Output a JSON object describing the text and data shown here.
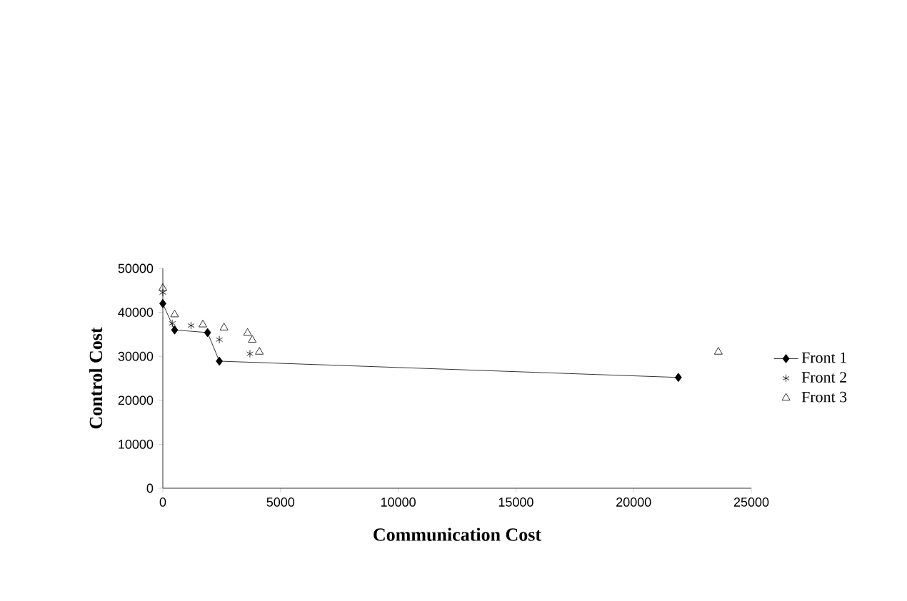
{
  "chart_data": {
    "type": "scatter",
    "xlabel": "Communication Cost",
    "ylabel": "Control Cost",
    "xlim": [
      0,
      25000
    ],
    "ylim": [
      0,
      50000
    ],
    "xticks": [
      0,
      5000,
      10000,
      15000,
      20000,
      25000
    ],
    "yticks": [
      0,
      10000,
      20000,
      30000,
      40000,
      50000
    ],
    "legend": "right",
    "grid": false,
    "series": [
      {
        "name": "Front 1",
        "type": "line",
        "marker": "diamond",
        "line_style": "solid",
        "color": "#000000",
        "x": [
          0,
          500,
          1900,
          2400,
          21900
        ],
        "values": [
          42000,
          36000,
          35400,
          28900,
          25200
        ]
      },
      {
        "name": "Front 2",
        "type": "scatter",
        "marker": "cross",
        "color": "#000000",
        "x": [
          0,
          400,
          1200,
          2400,
          3700
        ],
        "values": [
          44500,
          37500,
          37000,
          33800,
          30600
        ]
      },
      {
        "name": "Front 3",
        "type": "scatter",
        "marker": "triangle",
        "color": "#000000",
        "x": [
          0,
          500,
          1700,
          2600,
          3600,
          3800,
          4100,
          23600
        ],
        "values": [
          45500,
          39500,
          37200,
          36500,
          35300,
          33700,
          31000,
          31000
        ]
      }
    ]
  }
}
